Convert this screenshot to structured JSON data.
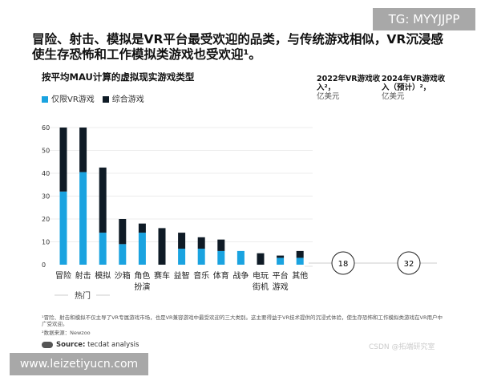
{
  "headline": "冒险、射击、模拟是VR平台最受欢迎的品类，与传统游戏相似，VR沉浸感使生存恐怖和工作模拟类游戏也受欢迎¹。",
  "chart_data": {
    "type": "bar",
    "stacked": true,
    "title": "按平均MAU计算的虚拟现实游戏类型",
    "categories": [
      "冒险",
      "射击",
      "模拟",
      "沙箱",
      "角色扮演",
      "赛车",
      "益智",
      "音乐",
      "体育",
      "战争",
      "电玩街机",
      "平台游戏",
      "其他"
    ],
    "category_lines": [
      [
        "冒险"
      ],
      [
        "射击"
      ],
      [
        "模拟"
      ],
      [
        "沙箱"
      ],
      [
        "角色",
        "扮演"
      ],
      [
        "赛车"
      ],
      [
        "益智"
      ],
      [
        "音乐"
      ],
      [
        "体育"
      ],
      [
        "战争"
      ],
      [
        "电玩",
        "街机"
      ],
      [
        "平台",
        "游戏"
      ],
      [
        "其他"
      ]
    ],
    "group_label": "热门",
    "series": [
      {
        "name": "仅限VR游戏",
        "color": "#1aa3e0",
        "values": [
          32,
          40.5,
          14,
          9,
          14,
          0,
          7,
          7,
          6,
          6,
          0,
          3,
          3
        ]
      },
      {
        "name": "综合游戏",
        "color": "#0f1b26",
        "values": [
          28,
          19.5,
          28.5,
          11,
          4,
          16,
          7,
          5,
          5,
          0,
          5,
          1,
          3
        ]
      }
    ],
    "yticks": [
      0,
      10,
      20,
      30,
      40,
      50,
      60
    ],
    "ylim": [
      0,
      60
    ],
    "grid": true,
    "legend": "top-left"
  },
  "revenue": {
    "col2022": {
      "title": "2022年VR游戏收入²，",
      "unit": "亿美元",
      "value": "18"
    },
    "col2024": {
      "title": "2024年VR游戏收入（预计）²，",
      "unit": "亿美元",
      "value": "32"
    }
  },
  "footnotes": {
    "note1": "¹冒险、射击和模拟不仅主导了VR专属游戏市场，也是VR兼容游戏中最受欢迎的三大类别。这主要得益于VR技术提供的沉浸式体验，使生存恐怖和工作模拟类游戏在VR用户中广受欢迎。",
    "note2": "²数据来源：Newzoo",
    "source_label": "Source:",
    "source_text": "tecdat analysis",
    "logo_text": "tecdat"
  },
  "watermarks": {
    "tg": "TG: MYYJJPP",
    "site": "www.leizetiyucn.com",
    "csdn": "CSDN @拓端研究室"
  }
}
